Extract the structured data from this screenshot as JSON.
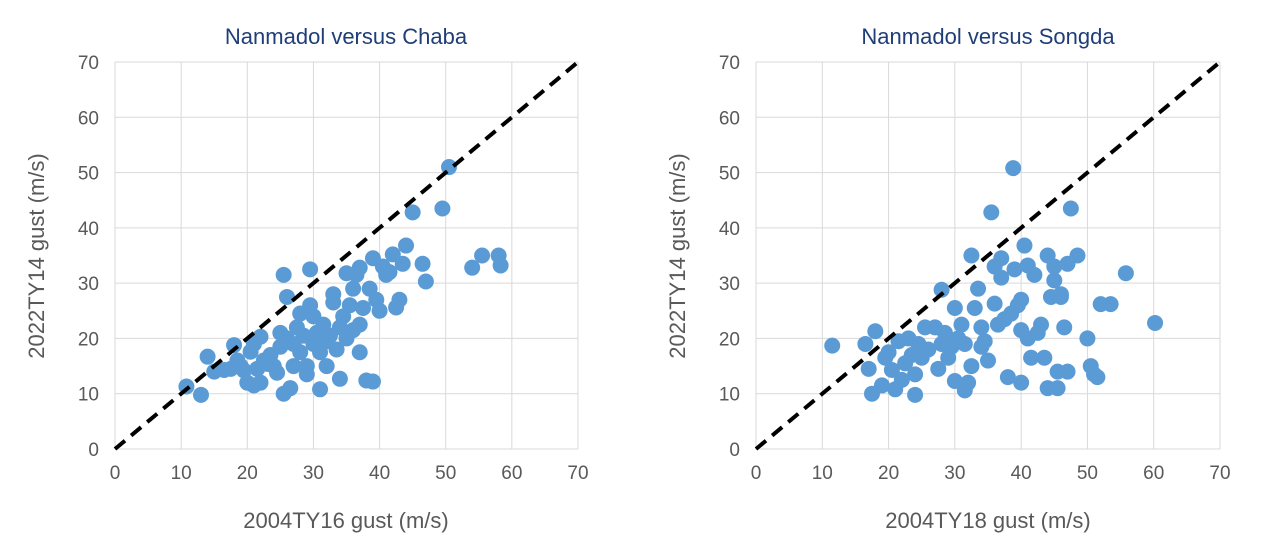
{
  "colors": {
    "point": "#5b9bd5",
    "title": "#1f3e78",
    "axis_text": "#595959",
    "grid": "#d9d9d9",
    "reference_line": "#000000"
  },
  "chart_data": [
    {
      "type": "scatter",
      "title": "Nanmadol versus Chaba",
      "xlabel": "2004TY16 gust (m/s)",
      "ylabel": "2022TY14 gust (m/s)",
      "xlim": [
        0,
        70
      ],
      "ylim": [
        0,
        70
      ],
      "xticks": [
        "0",
        "10",
        "20",
        "30",
        "40",
        "50",
        "60",
        "70"
      ],
      "yticks": [
        "0",
        "10",
        "20",
        "30",
        "40",
        "50",
        "60",
        "70"
      ],
      "grid": true,
      "reference_line": "y = x (dashed)",
      "points": [
        [
          10.8,
          11.3
        ],
        [
          13,
          9.8
        ],
        [
          14,
          16.7
        ],
        [
          15,
          14
        ],
        [
          16.5,
          14.3
        ],
        [
          17.5,
          14.5
        ],
        [
          18,
          18.8
        ],
        [
          18.5,
          16
        ],
        [
          19,
          15
        ],
        [
          19.5,
          14.2
        ],
        [
          20,
          12
        ],
        [
          20.5,
          17.6
        ],
        [
          21,
          11.5
        ],
        [
          21,
          19
        ],
        [
          21.5,
          14.5
        ],
        [
          22,
          20.3
        ],
        [
          22,
          12
        ],
        [
          22.5,
          16
        ],
        [
          23,
          15.4
        ],
        [
          23.5,
          17
        ],
        [
          24,
          15
        ],
        [
          24.5,
          13.8
        ],
        [
          25,
          18.5
        ],
        [
          25,
          21
        ],
        [
          25.5,
          10
        ],
        [
          25.5,
          31.5
        ],
        [
          26,
          27.5
        ],
        [
          26,
          20
        ],
        [
          26.5,
          11
        ],
        [
          27,
          19
        ],
        [
          27,
          15
        ],
        [
          27.5,
          22
        ],
        [
          28,
          24.5
        ],
        [
          28,
          17.5
        ],
        [
          28.5,
          20.5
        ],
        [
          29,
          15
        ],
        [
          29,
          13.5
        ],
        [
          29.5,
          26
        ],
        [
          29.5,
          32.5
        ],
        [
          30,
          19
        ],
        [
          30,
          24
        ],
        [
          30.5,
          21
        ],
        [
          31,
          10.8
        ],
        [
          31,
          17.5
        ],
        [
          31.5,
          22.5
        ],
        [
          32,
          15
        ],
        [
          32,
          19.5
        ],
        [
          32.5,
          20.5
        ],
        [
          33,
          28
        ],
        [
          33,
          26.5
        ],
        [
          33.5,
          18
        ],
        [
          34,
          22
        ],
        [
          34,
          12.7
        ],
        [
          34.5,
          24
        ],
        [
          35,
          31.8
        ],
        [
          35,
          20
        ],
        [
          35.5,
          26
        ],
        [
          36,
          21.5
        ],
        [
          36,
          29
        ],
        [
          36.5,
          31.5
        ],
        [
          37,
          32.8
        ],
        [
          37,
          22.5
        ],
        [
          37,
          17.5
        ],
        [
          37.5,
          25.5
        ],
        [
          38,
          12.4
        ],
        [
          38.5,
          29
        ],
        [
          39,
          12.2
        ],
        [
          39,
          34.5
        ],
        [
          39.5,
          27
        ],
        [
          40,
          25
        ],
        [
          40.5,
          33
        ],
        [
          41,
          31.5
        ],
        [
          41.5,
          32
        ],
        [
          42,
          35.2
        ],
        [
          42.5,
          25.6
        ],
        [
          43,
          27
        ],
        [
          43.5,
          33.5
        ],
        [
          44,
          36.8
        ],
        [
          45,
          42.8
        ],
        [
          46.5,
          33.5
        ],
        [
          47,
          30.3
        ],
        [
          49.5,
          43.5
        ],
        [
          50.5,
          51
        ],
        [
          54,
          32.8
        ],
        [
          55.5,
          35
        ],
        [
          58,
          35
        ],
        [
          58.3,
          33.2
        ]
      ]
    },
    {
      "type": "scatter",
      "title": "Nanmadol versus Songda",
      "xlabel": "2004TY18 gust (m/s)",
      "ylabel": "2022TY14 gust (m/s)",
      "xlim": [
        0,
        70
      ],
      "ylim": [
        0,
        70
      ],
      "xticks": [
        "0",
        "10",
        "20",
        "30",
        "40",
        "50",
        "60",
        "70"
      ],
      "yticks": [
        "0",
        "10",
        "20",
        "30",
        "40",
        "50",
        "60",
        "70"
      ],
      "grid": true,
      "reference_line": "y = x (dashed)",
      "points": [
        [
          11.5,
          18.7
        ],
        [
          16.5,
          19
        ],
        [
          17,
          14.5
        ],
        [
          17.5,
          10
        ],
        [
          18,
          21.3
        ],
        [
          19,
          11.5
        ],
        [
          19.5,
          16.5
        ],
        [
          20,
          17.5
        ],
        [
          20.5,
          14.3
        ],
        [
          21,
          10.8
        ],
        [
          21.5,
          19.5
        ],
        [
          22,
          12.5
        ],
        [
          22.5,
          15.5
        ],
        [
          23,
          20
        ],
        [
          23.5,
          17
        ],
        [
          24,
          9.8
        ],
        [
          24,
          13.5
        ],
        [
          24.5,
          19
        ],
        [
          25,
          16.5
        ],
        [
          25.5,
          22
        ],
        [
          26,
          18
        ],
        [
          27,
          22
        ],
        [
          27.5,
          14.5
        ],
        [
          28,
          28.8
        ],
        [
          28,
          19
        ],
        [
          28.5,
          21
        ],
        [
          29,
          16.5
        ],
        [
          29.5,
          18.5
        ],
        [
          30,
          25.5
        ],
        [
          30,
          12.3
        ],
        [
          30.5,
          20
        ],
        [
          31,
          22.5
        ],
        [
          31.5,
          19
        ],
        [
          31.5,
          10.6
        ],
        [
          32,
          12
        ],
        [
          32.5,
          35
        ],
        [
          32.5,
          15
        ],
        [
          33,
          25.5
        ],
        [
          33.5,
          29
        ],
        [
          34,
          22
        ],
        [
          34,
          18.5
        ],
        [
          34.5,
          19.5
        ],
        [
          35,
          16
        ],
        [
          35.5,
          42.8
        ],
        [
          36,
          26.3
        ],
        [
          36,
          33
        ],
        [
          36.5,
          22.5
        ],
        [
          37,
          34.5
        ],
        [
          37,
          31
        ],
        [
          37.5,
          23.5
        ],
        [
          38,
          13
        ],
        [
          38.5,
          24.5
        ],
        [
          38.8,
          50.8
        ],
        [
          39,
          32.5
        ],
        [
          39.5,
          26
        ],
        [
          40,
          27
        ],
        [
          40,
          21.5
        ],
        [
          40,
          12
        ],
        [
          40.5,
          36.8
        ],
        [
          41,
          33.2
        ],
        [
          41,
          20
        ],
        [
          41.5,
          16.5
        ],
        [
          42,
          31.5
        ],
        [
          42.5,
          21
        ],
        [
          43,
          22.5
        ],
        [
          43.5,
          16.5
        ],
        [
          44,
          35
        ],
        [
          44,
          11
        ],
        [
          44.5,
          27.5
        ],
        [
          45,
          33
        ],
        [
          45,
          30.5
        ],
        [
          45.5,
          14
        ],
        [
          45.5,
          11
        ],
        [
          46,
          28
        ],
        [
          46,
          27.5
        ],
        [
          46.5,
          22
        ],
        [
          47,
          33.5
        ],
        [
          47,
          14
        ],
        [
          47.5,
          43.5
        ],
        [
          48.5,
          35
        ],
        [
          50,
          20
        ],
        [
          50.5,
          15
        ],
        [
          51,
          13.5
        ],
        [
          51.5,
          13
        ],
        [
          52,
          26.2
        ],
        [
          53.5,
          26.2
        ],
        [
          55.8,
          31.8
        ],
        [
          60.2,
          22.8
        ]
      ]
    }
  ]
}
